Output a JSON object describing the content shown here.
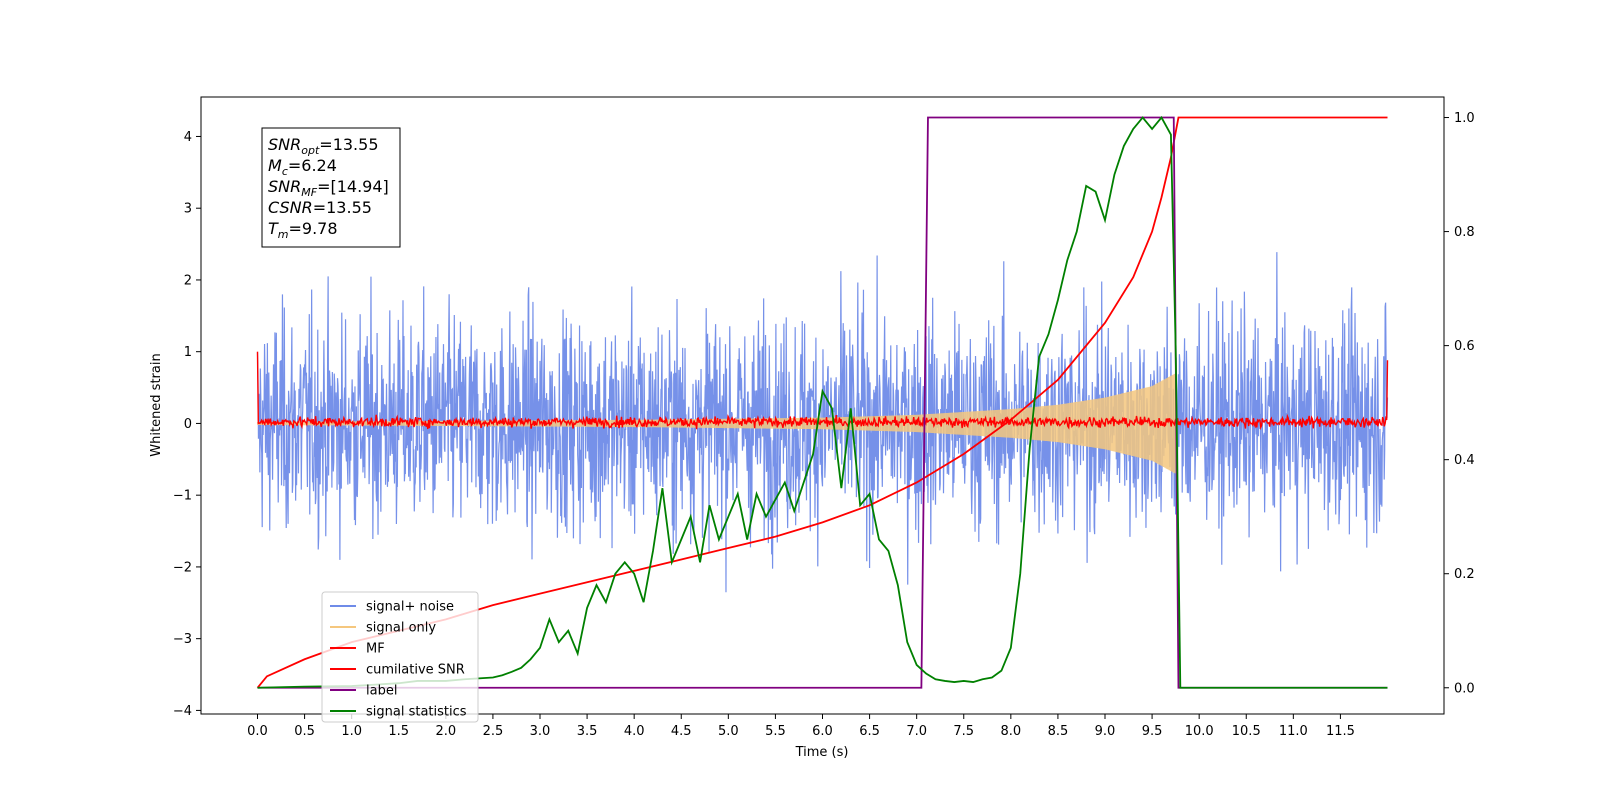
{
  "chart_data": {
    "type": "line",
    "xlabel": "Time (s)",
    "ylabel": "Whitened strain",
    "xlim": [
      -0.6,
      12.6
    ],
    "ylim": [
      -4.05,
      4.55
    ],
    "y2lim": [
      -0.046,
      1.036
    ],
    "x_ticks": [
      "0.0",
      "0.5",
      "1.0",
      "1.5",
      "2.0",
      "2.5",
      "3.0",
      "3.5",
      "4.0",
      "4.5",
      "5.0",
      "5.5",
      "6.0",
      "6.5",
      "7.0",
      "7.5",
      "8.0",
      "8.5",
      "9.0",
      "9.5",
      "10.0",
      "10.5",
      "11.0",
      "11.5"
    ],
    "y_ticks": [
      "4",
      "3",
      "2",
      "1",
      "0",
      "−1",
      "−2",
      "−3",
      "−4"
    ],
    "y2_ticks": [
      "1.0",
      "0.8",
      "0.6",
      "0.4",
      "0.2",
      "0.0"
    ],
    "grid": false,
    "legend_position": "lower-left",
    "annotation": {
      "lines": [
        {
          "base": "SNR",
          "sub": "opt",
          "rest": "=13.55"
        },
        {
          "base": "M",
          "sub": "c",
          "rest": "=6.24"
        },
        {
          "base": "SNR",
          "sub": "MF",
          "rest": "=[14.94]"
        },
        {
          "base": "CSNR",
          "sub": "",
          "rest": "=13.55"
        },
        {
          "base": "T",
          "sub": "m",
          "rest": "=9.78"
        }
      ]
    },
    "series": [
      {
        "name": "signal+ noise",
        "axis": "left",
        "color": "#6f8be8",
        "kind": "noise",
        "amplitude_envelope": [
          -3.6,
          3.7
        ],
        "x_range": [
          0.0,
          12.0
        ]
      },
      {
        "name": "signal only",
        "axis": "left",
        "color": "#f5c77e",
        "kind": "chirp",
        "x_range": [
          0.0,
          9.75
        ],
        "envelope_points": [
          [
            0.0,
            0.02
          ],
          [
            4.0,
            0.05
          ],
          [
            6.0,
            0.08
          ],
          [
            7.0,
            0.12
          ],
          [
            8.0,
            0.2
          ],
          [
            8.5,
            0.26
          ],
          [
            9.0,
            0.36
          ],
          [
            9.5,
            0.52
          ],
          [
            9.75,
            0.7
          ]
        ]
      },
      {
        "name": "MF",
        "axis": "left",
        "color": "#ff0000",
        "kind": "noise",
        "amplitude_envelope": [
          -0.1,
          0.15
        ],
        "x_range": [
          0.0,
          12.0
        ],
        "start_value": 1.0,
        "end_value": 0.88
      },
      {
        "name": "cumilative SNR",
        "axis": "right",
        "color": "#ff0000",
        "x": [
          0.0,
          0.1,
          0.5,
          1.0,
          1.5,
          2.0,
          2.5,
          3.0,
          3.5,
          4.0,
          4.5,
          5.0,
          5.5,
          6.0,
          6.5,
          7.0,
          7.5,
          8.0,
          8.5,
          9.0,
          9.3,
          9.5,
          9.6,
          9.7,
          9.78,
          10.0,
          11.0,
          12.0
        ],
        "y": [
          0.0,
          0.02,
          0.05,
          0.08,
          0.1,
          0.12,
          0.145,
          0.165,
          0.185,
          0.205,
          0.225,
          0.245,
          0.265,
          0.29,
          0.32,
          0.36,
          0.41,
          0.47,
          0.54,
          0.64,
          0.72,
          0.8,
          0.86,
          0.93,
          1.0,
          1.0,
          1.0,
          1.0
        ]
      },
      {
        "name": "label",
        "axis": "right",
        "color": "#800080",
        "x": [
          0.0,
          7.05,
          7.12,
          9.73,
          9.78,
          12.0
        ],
        "y": [
          0.0,
          0.0,
          1.0,
          1.0,
          0.0,
          0.0
        ]
      },
      {
        "name": "signal statistics",
        "axis": "right",
        "color": "#008000",
        "x": [
          0.0,
          0.5,
          1.0,
          1.3,
          1.5,
          1.7,
          2.0,
          2.2,
          2.5,
          2.6,
          2.7,
          2.8,
          2.9,
          3.0,
          3.1,
          3.2,
          3.3,
          3.4,
          3.5,
          3.6,
          3.7,
          3.8,
          3.9,
          4.0,
          4.1,
          4.2,
          4.3,
          4.4,
          4.5,
          4.6,
          4.7,
          4.8,
          4.9,
          5.0,
          5.1,
          5.2,
          5.3,
          5.4,
          5.5,
          5.6,
          5.7,
          5.8,
          5.9,
          6.0,
          6.1,
          6.2,
          6.3,
          6.4,
          6.5,
          6.6,
          6.7,
          6.8,
          6.9,
          7.0,
          7.1,
          7.2,
          7.3,
          7.4,
          7.5,
          7.6,
          7.7,
          7.8,
          7.9,
          8.0,
          8.1,
          8.2,
          8.3,
          8.4,
          8.5,
          8.6,
          8.7,
          8.8,
          8.9,
          9.0,
          9.1,
          9.2,
          9.3,
          9.4,
          9.5,
          9.6,
          9.7,
          9.75,
          9.8,
          10.0,
          11.0,
          12.0
        ],
        "y": [
          0.0,
          0.002,
          0.003,
          0.006,
          0.008,
          0.012,
          0.012,
          0.015,
          0.018,
          0.022,
          0.028,
          0.035,
          0.05,
          0.07,
          0.12,
          0.08,
          0.1,
          0.06,
          0.14,
          0.18,
          0.15,
          0.2,
          0.22,
          0.2,
          0.15,
          0.24,
          0.35,
          0.22,
          0.26,
          0.3,
          0.22,
          0.32,
          0.26,
          0.3,
          0.34,
          0.26,
          0.34,
          0.3,
          0.33,
          0.36,
          0.31,
          0.36,
          0.41,
          0.52,
          0.49,
          0.35,
          0.49,
          0.32,
          0.34,
          0.26,
          0.24,
          0.18,
          0.08,
          0.04,
          0.025,
          0.015,
          0.012,
          0.01,
          0.012,
          0.01,
          0.015,
          0.018,
          0.03,
          0.07,
          0.2,
          0.42,
          0.58,
          0.62,
          0.68,
          0.75,
          0.8,
          0.88,
          0.87,
          0.82,
          0.9,
          0.95,
          0.98,
          1.0,
          0.98,
          1.0,
          0.97,
          0.6,
          0.0,
          0.0,
          0.0,
          0.0
        ]
      }
    ]
  }
}
